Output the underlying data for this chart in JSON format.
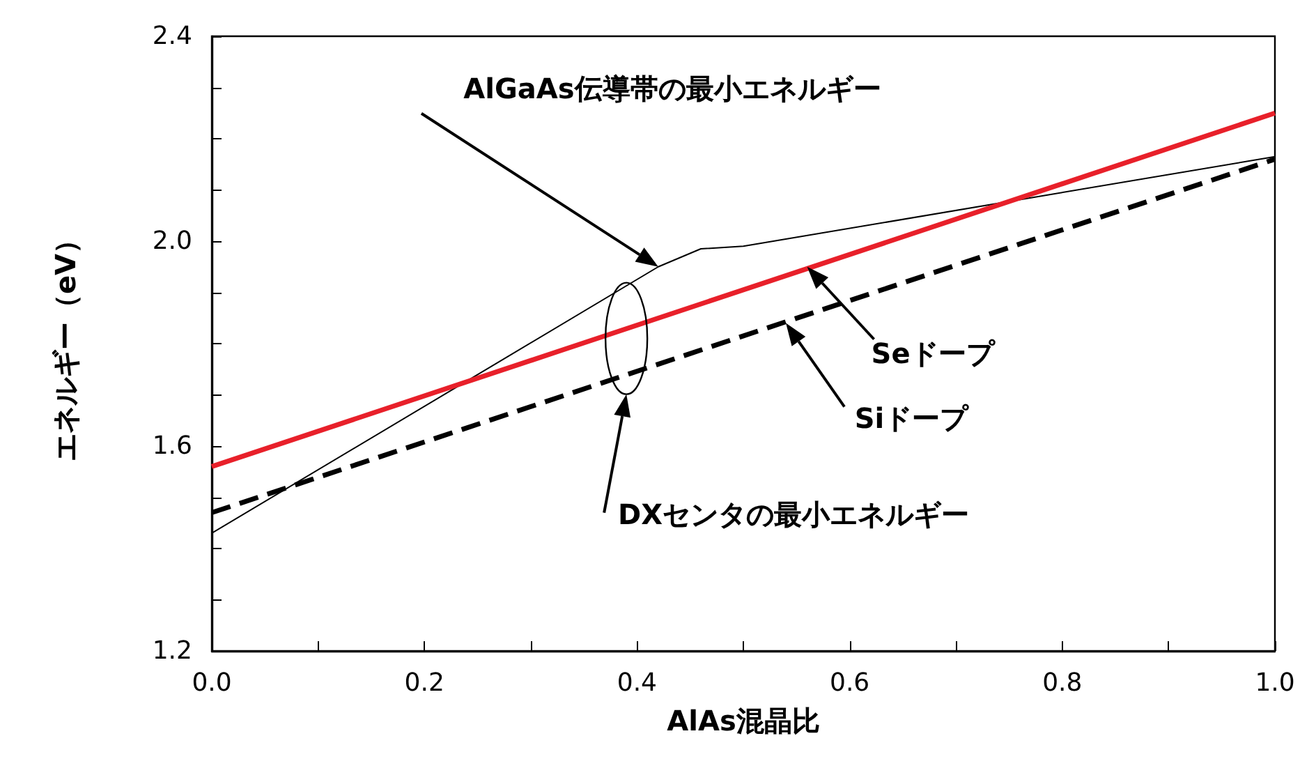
{
  "chart_data": {
    "type": "line",
    "xlabel": "AlAs混晶比",
    "ylabel": "エネルギー（eV）",
    "xlim": [
      0,
      1
    ],
    "xticks": [
      {
        "value": 0,
        "label": "0.0"
      },
      {
        "value": 0.1,
        "label": null
      },
      {
        "value": 0.2,
        "label": "0.2"
      },
      {
        "value": 0.3,
        "label": null
      },
      {
        "value": 0.4,
        "label": "0.4"
      },
      {
        "value": 0.5,
        "label": null
      },
      {
        "value": 0.6,
        "label": "0.6"
      },
      {
        "value": 0.7,
        "label": null
      },
      {
        "value": 0.8,
        "label": "0.8"
      },
      {
        "value": 0.9,
        "label": null
      },
      {
        "value": 1,
        "label": "1.0"
      }
    ],
    "ylim": [
      1.2,
      2.4
    ],
    "yticks": [
      1.2,
      {
        "value": 1.3,
        "label": null
      },
      {
        "value": 1.4,
        "label": null
      },
      {
        "value": 1.5,
        "label": null
      },
      1.6,
      {
        "value": 1.7,
        "label": null
      },
      {
        "value": 1.8,
        "label": null
      },
      {
        "value": 1.9,
        "label": null
      },
      {
        "value": 2.0,
        "label": "2.0"
      },
      {
        "value": 2.1,
        "label": null
      },
      {
        "value": 2.2,
        "label": null
      },
      {
        "value": 2.3,
        "label": null
      },
      2.4
    ],
    "series": [
      {
        "color": "#000000",
        "x": [
          0,
          0.42,
          0.46,
          0.5,
          1.0
        ],
        "values": [
          1.43,
          1.95,
          1.985,
          1.99,
          2.165
        ],
        "line_style": "solid"
      },
      {
        "color": "#e8202a",
        "x": [
          0,
          1
        ],
        "values": [
          1.56,
          2.25
        ],
        "line_style": "solid"
      },
      {
        "color": "#000000",
        "x": [
          0,
          1
        ],
        "values": [
          1.47,
          2.16
        ],
        "line_style": "dashed"
      }
    ],
    "annotations": [
      "AlGaAs伝導帯の最小エネルギー",
      "Seドープ",
      "Siドープ",
      "DXセンタの最小エネルギー"
    ],
    "grid": false,
    "marker": "none"
  }
}
